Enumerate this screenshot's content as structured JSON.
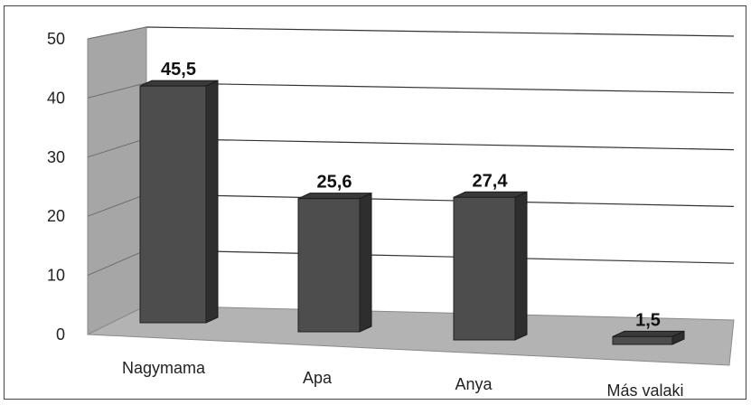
{
  "chart_data": {
    "type": "bar",
    "categories": [
      "Nagymama",
      "Apa",
      "Anya",
      "Más valaki"
    ],
    "values": [
      45.5,
      25.6,
      27.4,
      1.5
    ],
    "data_labels": [
      "45,5",
      "25,6",
      "27,4",
      "1,5"
    ],
    "yticks": [
      "0",
      "10",
      "20",
      "30",
      "40",
      "50"
    ],
    "ylim": [
      0,
      50
    ],
    "title": "",
    "xlabel": "",
    "ylabel": "",
    "grid": true,
    "legend": "none",
    "bar_color": "#4d4d4d",
    "wall_color": "#a6a6a6",
    "floor_color": "#b3b3b3"
  }
}
